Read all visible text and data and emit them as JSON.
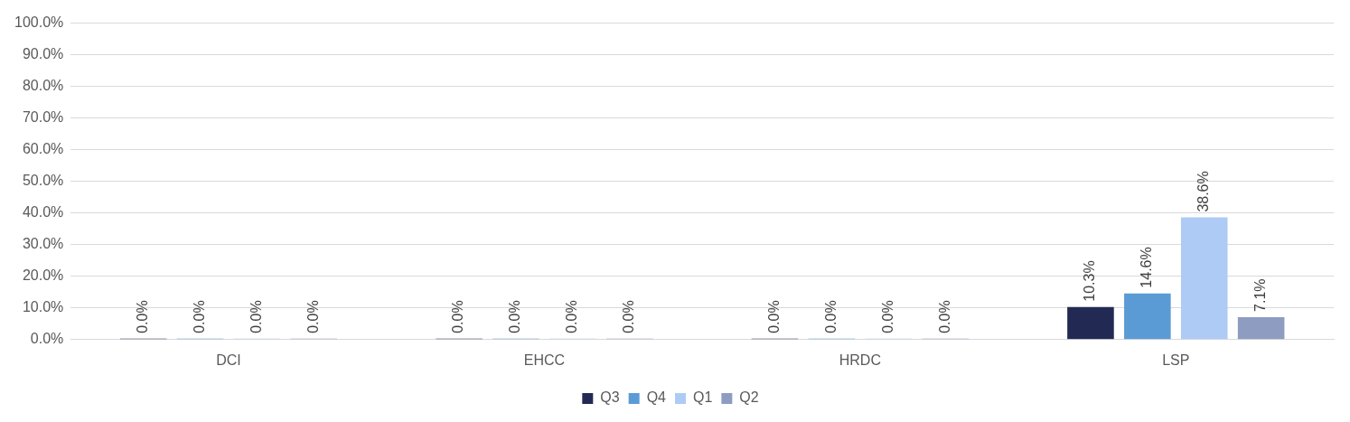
{
  "chart_data": {
    "type": "bar",
    "categories": [
      "DCI",
      "EHCC",
      "HRDC",
      "LSP"
    ],
    "series": [
      {
        "name": "Q3",
        "color": "#222a54",
        "values": [
          0,
          0,
          0,
          10.3
        ],
        "value_labels": [
          "0.0%",
          "0.0%",
          "0.0%",
          "10.3%"
        ]
      },
      {
        "name": "Q4",
        "color": "#5b9bd5",
        "values": [
          0,
          0,
          0,
          14.6
        ],
        "value_labels": [
          "0.0%",
          "0.0%",
          "0.0%",
          "14.6%"
        ]
      },
      {
        "name": "Q1",
        "color": "#aecbf5",
        "values": [
          0,
          0,
          0,
          38.6
        ],
        "value_labels": [
          "0.0%",
          "0.0%",
          "0.0%",
          "38.6%"
        ]
      },
      {
        "name": "Q2",
        "color": "#8d9cc0",
        "values": [
          0,
          0,
          0,
          7.1
        ],
        "value_labels": [
          "0.0%",
          "0.0%",
          "0.0%",
          "7.1%"
        ]
      }
    ],
    "ylim": [
      0,
      100
    ],
    "yticks": [
      {
        "value": 0,
        "label": "0.0%"
      },
      {
        "value": 10,
        "label": "10.0%"
      },
      {
        "value": 20,
        "label": "20.0%"
      },
      {
        "value": 30,
        "label": "30.0%"
      },
      {
        "value": 40,
        "label": "40.0%"
      },
      {
        "value": 50,
        "label": "50.0%"
      },
      {
        "value": 60,
        "label": "60.0%"
      },
      {
        "value": 70,
        "label": "70.0%"
      },
      {
        "value": 80,
        "label": "80.0%"
      },
      {
        "value": 90,
        "label": "90.0%"
      },
      {
        "value": 100,
        "label": "100.0%"
      }
    ],
    "grid": "y",
    "legend": "bottom"
  }
}
